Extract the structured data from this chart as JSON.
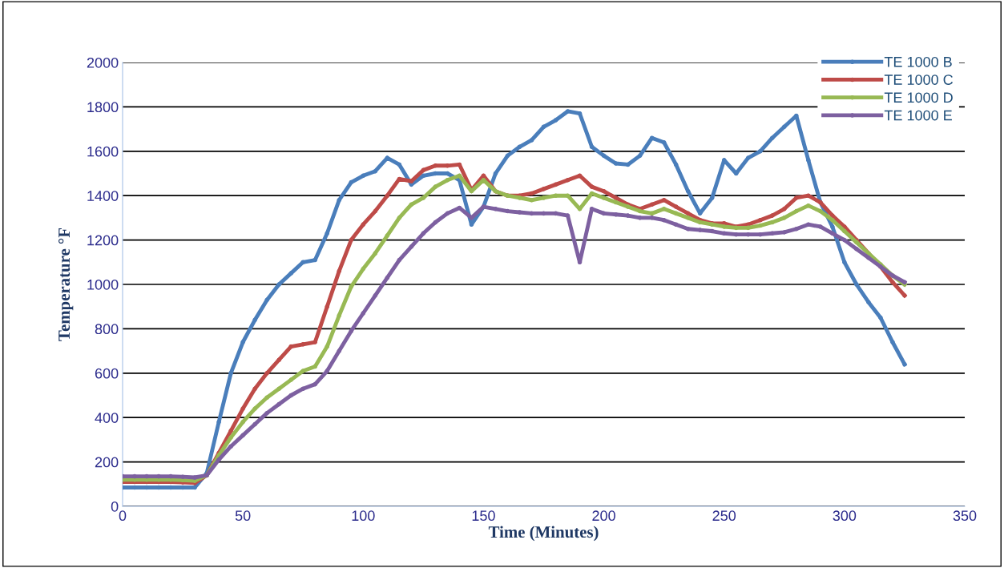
{
  "chart_data": {
    "type": "line",
    "xlabel": "Time (Minutes)",
    "ylabel": "Temperature °F",
    "x": [
      0,
      5,
      10,
      15,
      20,
      25,
      30,
      35,
      40,
      45,
      50,
      55,
      60,
      65,
      70,
      75,
      80,
      85,
      90,
      95,
      100,
      105,
      110,
      115,
      120,
      125,
      130,
      135,
      140,
      145,
      150,
      155,
      160,
      165,
      170,
      175,
      180,
      185,
      190,
      195,
      200,
      205,
      210,
      215,
      220,
      225,
      230,
      235,
      240,
      245,
      250,
      255,
      260,
      265,
      270,
      275,
      280,
      285,
      290,
      295,
      300,
      305,
      310,
      315,
      320,
      325
    ],
    "series": [
      {
        "name": "TE 1000 B",
        "color": "#4a7ebb",
        "values": [
          85,
          85,
          85,
          85,
          85,
          85,
          85,
          150,
          380,
          600,
          740,
          840,
          930,
          1000,
          1050,
          1100,
          1110,
          1230,
          1380,
          1460,
          1490,
          1510,
          1570,
          1540,
          1450,
          1490,
          1500,
          1500,
          1470,
          1270,
          1350,
          1500,
          1580,
          1620,
          1650,
          1710,
          1740,
          1780,
          1770,
          1620,
          1580,
          1545,
          1540,
          1580,
          1660,
          1640,
          1540,
          1420,
          1320,
          1390,
          1560,
          1500,
          1570,
          1600,
          1660,
          1710,
          1760,
          1560,
          1370,
          1260,
          1100,
          1000,
          920,
          850,
          740,
          640
        ]
      },
      {
        "name": "TE 1000 C",
        "color": "#be4b48",
        "values": [
          110,
          110,
          110,
          110,
          110,
          108,
          105,
          140,
          240,
          340,
          440,
          530,
          600,
          660,
          720,
          730,
          740,
          900,
          1060,
          1200,
          1270,
          1330,
          1400,
          1475,
          1465,
          1515,
          1535,
          1535,
          1540,
          1425,
          1490,
          1420,
          1400,
          1400,
          1410,
          1430,
          1450,
          1470,
          1490,
          1440,
          1420,
          1390,
          1360,
          1340,
          1360,
          1380,
          1350,
          1320,
          1290,
          1275,
          1275,
          1260,
          1270,
          1290,
          1310,
          1340,
          1390,
          1400,
          1370,
          1310,
          1260,
          1200,
          1140,
          1080,
          1010,
          950
        ]
      },
      {
        "name": "TE 1000 D",
        "color": "#98b954",
        "values": [
          120,
          120,
          120,
          120,
          120,
          118,
          115,
          140,
          230,
          310,
          380,
          440,
          490,
          530,
          570,
          610,
          630,
          720,
          860,
          990,
          1070,
          1140,
          1220,
          1300,
          1360,
          1390,
          1440,
          1470,
          1490,
          1420,
          1470,
          1420,
          1400,
          1390,
          1380,
          1390,
          1400,
          1400,
          1340,
          1410,
          1390,
          1370,
          1350,
          1330,
          1320,
          1340,
          1320,
          1300,
          1280,
          1270,
          1260,
          1255,
          1255,
          1265,
          1280,
          1300,
          1330,
          1355,
          1330,
          1290,
          1240,
          1190,
          1140,
          1090,
          1040,
          1000
        ]
      },
      {
        "name": "TE 1000 E",
        "color": "#7d60a0",
        "values": [
          135,
          135,
          135,
          135,
          135,
          133,
          130,
          140,
          210,
          270,
          320,
          370,
          420,
          460,
          500,
          530,
          550,
          610,
          700,
          790,
          870,
          950,
          1030,
          1110,
          1170,
          1230,
          1280,
          1320,
          1345,
          1300,
          1350,
          1340,
          1330,
          1325,
          1320,
          1320,
          1320,
          1310,
          1100,
          1340,
          1320,
          1315,
          1310,
          1300,
          1300,
          1290,
          1270,
          1250,
          1245,
          1240,
          1230,
          1225,
          1225,
          1225,
          1230,
          1235,
          1250,
          1270,
          1260,
          1230,
          1200,
          1160,
          1120,
          1080,
          1040,
          1010
        ]
      }
    ],
    "xlim": [
      0,
      350
    ],
    "xticks": [
      0,
      50,
      100,
      150,
      200,
      250,
      300,
      350
    ],
    "ylim": [
      0,
      2000
    ],
    "yticks": [
      0,
      200,
      400,
      600,
      800,
      1000,
      1200,
      1400,
      1600,
      1800,
      2000
    ],
    "grid": "y",
    "legend": "top right",
    "marker": "circle",
    "line_style": "solid"
  }
}
